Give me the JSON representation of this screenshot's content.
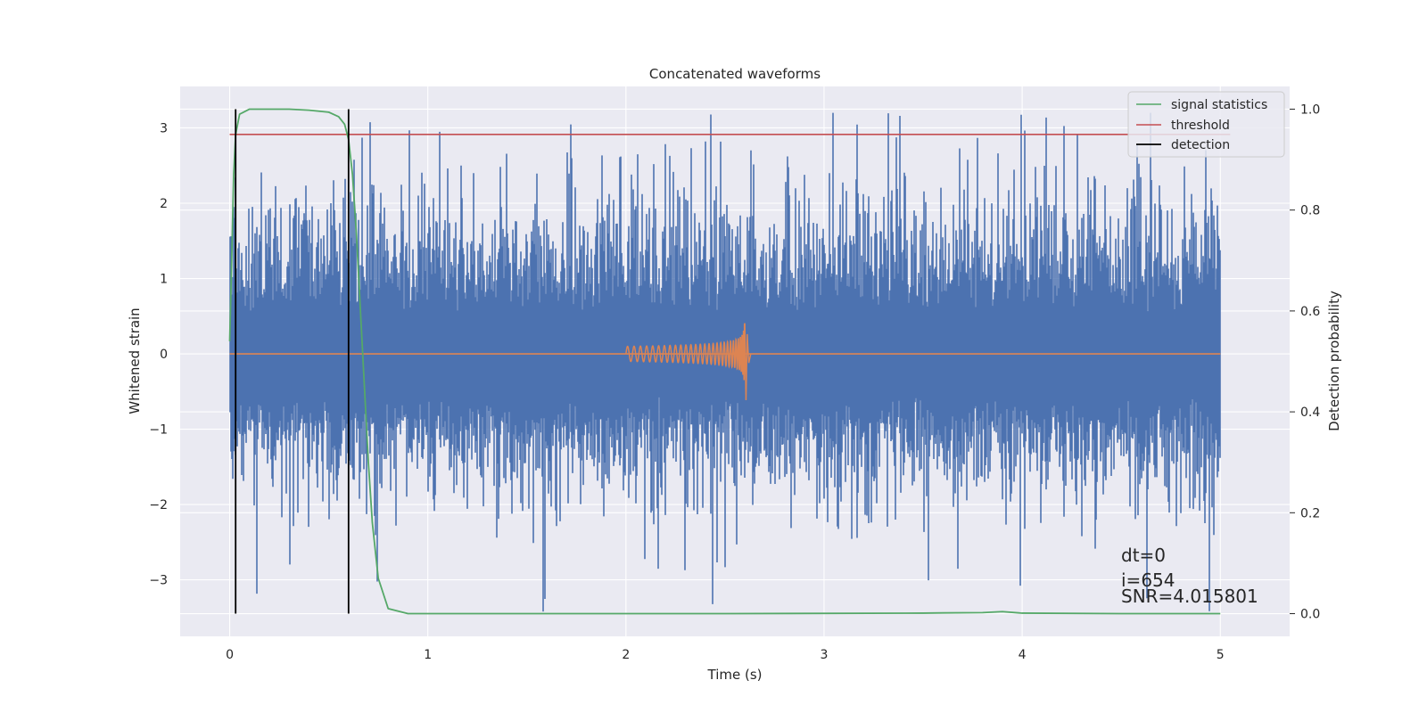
{
  "chart_data": {
    "type": "line",
    "title": "Concatenated waveforms",
    "xlabel": "Time (s)",
    "ylabel": "Whitened strain",
    "y2label": "Detection probability",
    "xlim": [
      -0.25,
      5.35
    ],
    "ylim": [
      -3.75,
      3.55
    ],
    "y2lim": [
      -0.045,
      1.045
    ],
    "xticks": [
      0,
      1,
      2,
      3,
      4,
      5
    ],
    "yticks": [
      -3,
      -2,
      -1,
      0,
      1,
      2,
      3
    ],
    "y2ticks": [
      0.0,
      0.2,
      0.4,
      0.6,
      0.8,
      1.0
    ],
    "xtick_labels": [
      "0",
      "1",
      "2",
      "3",
      "4",
      "5"
    ],
    "ytick_labels": [
      "−3",
      "−2",
      "−1",
      "0",
      "1",
      "2",
      "3"
    ],
    "y2tick_labels": [
      "0.0",
      "0.2",
      "0.4",
      "0.6",
      "0.8",
      "1.0"
    ],
    "grid": true,
    "legend_position": "top-right",
    "series": [
      {
        "name": "",
        "kind": "whitened-noise",
        "axis": "left",
        "color": "#4c72b0",
        "x_range": [
          0,
          5
        ],
        "typical_range": [
          -1.5,
          1.8
        ],
        "peak_max": 3.2,
        "peak_min": -3.45
      },
      {
        "name": "",
        "kind": "injected-chirp",
        "axis": "left",
        "color": "#dd8452",
        "x_range": [
          0,
          5
        ],
        "chirp_start": 2.0,
        "chirp_merger": 2.6,
        "start_amplitude": 0.1,
        "peak_amplitude": 0.75
      },
      {
        "name": "signal statistics",
        "axis": "right",
        "color": "#55a868",
        "x": [
          0,
          0.01,
          0.02,
          0.03,
          0.05,
          0.1,
          0.2,
          0.3,
          0.4,
          0.5,
          0.55,
          0.58,
          0.6,
          0.62,
          0.64,
          0.66,
          0.68,
          0.7,
          0.72,
          0.75,
          0.8,
          0.9,
          1.5,
          2.5,
          3.5,
          3.6,
          3.8,
          3.9,
          4.0,
          4.5,
          5.0
        ],
        "y": [
          0.54,
          0.7,
          0.87,
          0.95,
          0.99,
          1.0,
          1.0,
          1.0,
          0.998,
          0.994,
          0.985,
          0.97,
          0.94,
          0.87,
          0.75,
          0.6,
          0.45,
          0.3,
          0.18,
          0.07,
          0.01,
          0.0,
          0.0,
          0.0,
          0.001,
          0.0015,
          0.002,
          0.004,
          0.001,
          0.0,
          0.0
        ]
      },
      {
        "name": "threshold",
        "axis": "right",
        "color": "#c44e52",
        "x": [
          0,
          5.05
        ],
        "y": [
          0.95,
          0.95
        ]
      },
      {
        "name": "detection",
        "axis": "right",
        "color": "#000000",
        "vlines": [
          0.03,
          0.6
        ],
        "y": [
          0.0,
          1.0
        ]
      }
    ],
    "annotations": {
      "dt": "dt=0",
      "i": "i=654",
      "snr": "SNR=4.015801"
    },
    "colors": {
      "plot_background": "#eaeaf2",
      "grid": "#ffffff",
      "text": "#262626"
    }
  }
}
